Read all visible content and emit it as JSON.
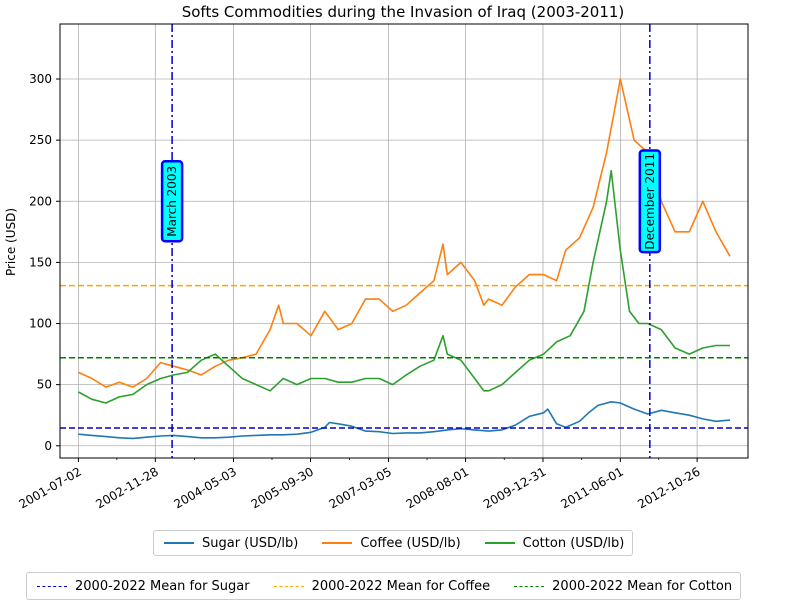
{
  "chart_data": {
    "type": "line",
    "title": "Softs Commodities during the Invasion of Iraq (2003-2011)",
    "xlabel": "",
    "ylabel": "Price (USD)",
    "xlim": [
      "2001-03-01",
      "2013-10-01"
    ],
    "ylim": [
      -10,
      345
    ],
    "grid": true,
    "x_ticks": [
      "2001-07-02",
      "2002-11-28",
      "2004-05-03",
      "2005-09-30",
      "2007-03-05",
      "2008-08-01",
      "2009-12-31",
      "2011-06-01",
      "2012-10-26"
    ],
    "y_ticks": [
      0,
      50,
      100,
      150,
      200,
      250,
      300
    ],
    "series": [
      {
        "name": "Sugar (USD/lb)",
        "color": "#1f77b4",
        "x": [
          "2001-07-02",
          "2001-10-01",
          "2002-01-02",
          "2002-04-01",
          "2002-07-01",
          "2002-10-01",
          "2003-01-02",
          "2003-04-01",
          "2003-07-01",
          "2003-10-01",
          "2004-01-02",
          "2004-04-01",
          "2004-07-01",
          "2004-10-01",
          "2005-01-03",
          "2005-04-01",
          "2005-07-01",
          "2005-10-03",
          "2006-01-03",
          "2006-02-03",
          "2006-04-03",
          "2006-07-03",
          "2006-10-02",
          "2007-01-02",
          "2007-04-02",
          "2007-07-02",
          "2007-10-01",
          "2008-01-02",
          "2008-04-01",
          "2008-07-01",
          "2008-10-01",
          "2009-01-02",
          "2009-04-01",
          "2009-07-01",
          "2009-10-01",
          "2010-01-04",
          "2010-02-01",
          "2010-04-01",
          "2010-06-01",
          "2010-09-01",
          "2010-11-01",
          "2011-01-03",
          "2011-04-01",
          "2011-06-01",
          "2011-09-01",
          "2011-12-01",
          "2012-03-01",
          "2012-06-01",
          "2012-09-04",
          "2012-12-03",
          "2013-03-01",
          "2013-06-03"
        ],
        "y": [
          9.5,
          8.5,
          7.5,
          6.5,
          6,
          7,
          8,
          8.5,
          7.5,
          6.5,
          6.5,
          7,
          8,
          8.5,
          9,
          9,
          9.5,
          11,
          15,
          19,
          18,
          16,
          12,
          11.5,
          10,
          10.5,
          10.5,
          11.5,
          13,
          14,
          13,
          12,
          13,
          17,
          24,
          27,
          30,
          18,
          15,
          20,
          27,
          33,
          36,
          35,
          30,
          26,
          29,
          27,
          25,
          22,
          20,
          21
        ]
      },
      {
        "name": "Coffee (USD/lb)",
        "color": "#ff7f0e",
        "x": [
          "2001-07-02",
          "2001-10-01",
          "2002-01-02",
          "2002-04-01",
          "2002-07-01",
          "2002-10-01",
          "2003-01-02",
          "2003-04-01",
          "2003-07-01",
          "2003-10-01",
          "2004-01-02",
          "2004-04-01",
          "2004-07-01",
          "2004-10-01",
          "2005-01-03",
          "2005-03-01",
          "2005-04-01",
          "2005-07-01",
          "2005-10-03",
          "2006-01-03",
          "2006-04-03",
          "2006-07-03",
          "2006-10-02",
          "2007-01-02",
          "2007-04-02",
          "2007-07-02",
          "2007-10-01",
          "2008-01-02",
          "2008-03-03",
          "2008-04-01",
          "2008-07-01",
          "2008-10-01",
          "2008-12-01",
          "2009-01-02",
          "2009-04-01",
          "2009-07-01",
          "2009-10-01",
          "2010-01-04",
          "2010-04-01",
          "2010-06-01",
          "2010-09-01",
          "2010-12-01",
          "2011-03-01",
          "2011-05-02",
          "2011-06-01",
          "2011-09-01",
          "2011-12-01",
          "2012-03-01",
          "2012-06-01",
          "2012-09-04",
          "2012-12-03",
          "2013-03-01",
          "2013-06-03"
        ],
        "y": [
          60,
          55,
          48,
          52,
          48,
          55,
          68,
          65,
          62,
          58,
          65,
          70,
          72,
          75,
          95,
          115,
          100,
          100,
          90,
          110,
          95,
          100,
          120,
          120,
          110,
          115,
          125,
          135,
          165,
          140,
          150,
          135,
          115,
          120,
          115,
          130,
          140,
          140,
          135,
          160,
          170,
          195,
          240,
          280,
          300,
          250,
          240,
          200,
          175,
          175,
          200,
          175,
          155
        ]
      },
      {
        "name": "Cotton (USD/lb)",
        "color": "#2ca02c",
        "x": [
          "2001-07-02",
          "2001-10-01",
          "2002-01-02",
          "2002-04-01",
          "2002-07-01",
          "2002-10-01",
          "2003-01-02",
          "2003-04-01",
          "2003-07-01",
          "2003-10-01",
          "2004-01-02",
          "2004-04-01",
          "2004-07-01",
          "2004-10-01",
          "2005-01-03",
          "2005-04-01",
          "2005-07-01",
          "2005-10-03",
          "2006-01-03",
          "2006-04-03",
          "2006-07-03",
          "2006-10-02",
          "2007-01-02",
          "2007-04-02",
          "2007-07-02",
          "2007-10-01",
          "2008-01-02",
          "2008-03-03",
          "2008-04-01",
          "2008-07-01",
          "2008-10-01",
          "2008-12-01",
          "2009-01-02",
          "2009-04-01",
          "2009-07-01",
          "2009-10-01",
          "2010-01-04",
          "2010-04-01",
          "2010-07-01",
          "2010-10-01",
          "2010-12-01",
          "2011-03-01",
          "2011-04-01",
          "2011-06-01",
          "2011-08-01",
          "2011-10-03",
          "2011-12-01",
          "2012-03-01",
          "2012-06-01",
          "2012-09-04",
          "2012-12-03",
          "2013-03-01",
          "2013-06-03"
        ],
        "y": [
          44,
          38,
          35,
          40,
          42,
          50,
          55,
          58,
          60,
          70,
          75,
          65,
          55,
          50,
          45,
          55,
          50,
          55,
          55,
          52,
          52,
          55,
          55,
          50,
          58,
          65,
          70,
          90,
          75,
          70,
          55,
          45,
          45,
          50,
          60,
          70,
          75,
          85,
          90,
          110,
          150,
          200,
          225,
          160,
          110,
          100,
          100,
          95,
          80,
          75,
          80,
          82,
          82
        ]
      }
    ],
    "hlines": [
      {
        "name": "2000-2022 Mean for Sugar",
        "value": 14.5,
        "color": "#0000cc"
      },
      {
        "name": "2000-2022 Mean for Coffee",
        "value": 131,
        "color": "#ffa500"
      },
      {
        "name": "2000-2022 Mean for Cotton",
        "value": 72,
        "color": "#008000"
      }
    ],
    "vlines": [
      {
        "date": "2003-03-20",
        "label": "March 2003",
        "label_value": 200,
        "color": "#0000cc"
      },
      {
        "date": "2011-12-15",
        "label": "December 2011",
        "label_value": 200,
        "color": "#0000cc"
      }
    ]
  }
}
